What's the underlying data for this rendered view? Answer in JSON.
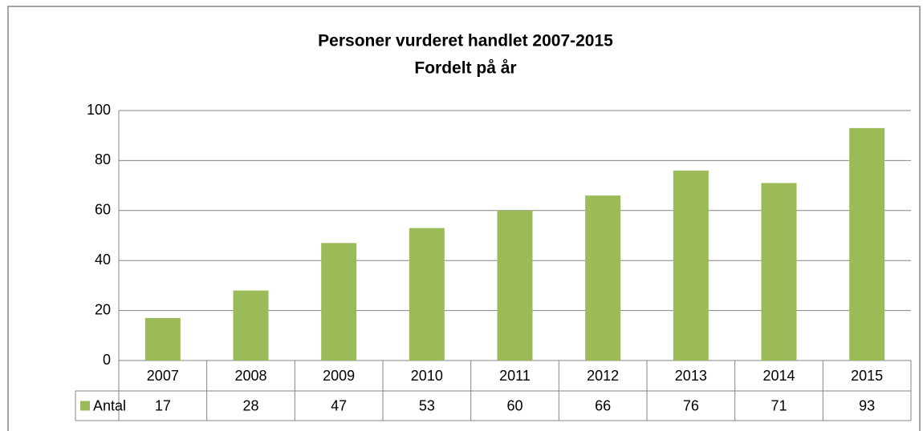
{
  "chart_data": {
    "type": "bar",
    "title": "Personer vurderet handlet 2007-2015",
    "subtitle": "Fordelt på år",
    "categories": [
      "2007",
      "2008",
      "2009",
      "2010",
      "2011",
      "2012",
      "2013",
      "2014",
      "2015"
    ],
    "series": [
      {
        "name": "Antal",
        "color": "#9bbb59",
        "values": [
          17,
          28,
          47,
          53,
          60,
          66,
          76,
          71,
          93
        ]
      }
    ],
    "ylim": [
      0,
      100
    ],
    "yticks": [
      0,
      20,
      40,
      60,
      80,
      100
    ],
    "grid": true,
    "data_table": true
  }
}
